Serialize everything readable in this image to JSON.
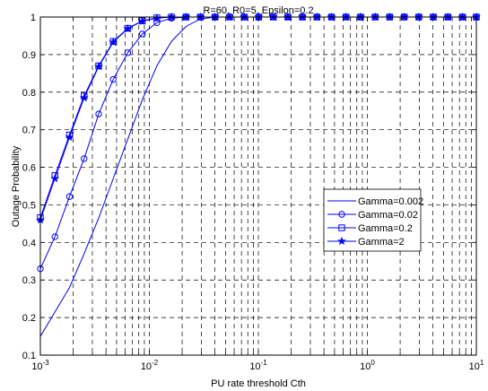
{
  "chart_data": {
    "type": "line",
    "title": "R=60, R0=5, Epsilon=0.2",
    "xlabel": "PU rate threshold Cth",
    "ylabel": "Outage Probability",
    "xscale": "log",
    "xlim": [
      0.001,
      10
    ],
    "ylim": [
      0.1,
      1
    ],
    "grid": true,
    "grid_style": "dashed",
    "legend_location": "center-right",
    "x_major_ticks": [
      {
        "value": 0.001,
        "base": "10",
        "exp": "-3"
      },
      {
        "value": 0.01,
        "base": "10",
        "exp": "-2"
      },
      {
        "value": 0.1,
        "base": "10",
        "exp": "-1"
      },
      {
        "value": 1,
        "base": "10",
        "exp": "0"
      },
      {
        "value": 10,
        "base": "10",
        "exp": "1"
      }
    ],
    "y_ticks": [
      "0.1",
      "0.2",
      "0.3",
      "0.4",
      "0.5",
      "0.6",
      "0.7",
      "0.8",
      "0.9",
      "1"
    ],
    "x": [
      0.001,
      0.00136,
      0.00185,
      0.00252,
      0.00343,
      0.00466,
      0.00634,
      0.00862,
      0.01172,
      0.01594,
      0.02168,
      0.02948,
      0.04009,
      0.05451,
      0.07413,
      0.1008,
      0.1371,
      0.1864,
      0.2535,
      0.3447,
      0.4688,
      0.6374,
      0.8668,
      1.179,
      1.603,
      2.18,
      2.964,
      4.031,
      5.481,
      7.454,
      10.0
    ],
    "series": [
      {
        "name": "Gamma=0.002",
        "color": "#0000ff",
        "marker": "none",
        "values": [
          0.15,
          0.215,
          0.28,
          0.37,
          0.465,
          0.57,
          0.675,
          0.78,
          0.87,
          0.935,
          0.975,
          0.995,
          1,
          1,
          1,
          1,
          1,
          1,
          1,
          1,
          1,
          1,
          1,
          1,
          1,
          1,
          1,
          1,
          1,
          1,
          1
        ]
      },
      {
        "name": "Gamma=0.02",
        "color": "#0000ff",
        "marker": "circle",
        "values": [
          0.33,
          0.415,
          0.522,
          0.623,
          0.742,
          0.834,
          0.905,
          0.955,
          0.985,
          0.997,
          1,
          1,
          1,
          1,
          1,
          1,
          1,
          1,
          1,
          1,
          1,
          1,
          1,
          1,
          1,
          1,
          1,
          1,
          1,
          1,
          1
        ]
      },
      {
        "name": "Gamma=0.2",
        "color": "#0000ff",
        "marker": "square",
        "values": [
          0.466,
          0.578,
          0.686,
          0.79,
          0.87,
          0.935,
          0.97,
          0.99,
          0.998,
          1,
          1,
          1,
          1,
          1,
          1,
          1,
          1,
          1,
          1,
          1,
          1,
          1,
          1,
          1,
          1,
          1,
          1,
          1,
          1,
          1,
          1
        ]
      },
      {
        "name": "Gamma=2",
        "color": "#0000ff",
        "marker": "star",
        "values": [
          0.46,
          0.57,
          0.68,
          0.785,
          0.868,
          0.933,
          0.969,
          0.989,
          0.997,
          1,
          1,
          1,
          1,
          1,
          1,
          1,
          1,
          1,
          1,
          1,
          1,
          1,
          1,
          1,
          1,
          1,
          1,
          1,
          1,
          1,
          1
        ]
      }
    ]
  }
}
